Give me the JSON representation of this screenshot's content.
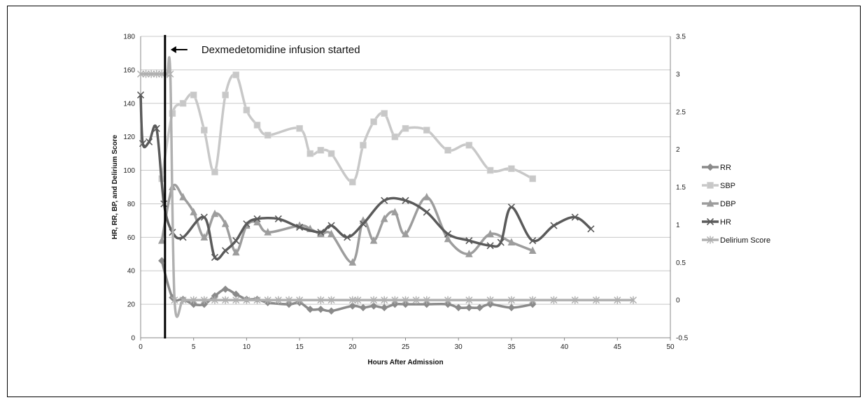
{
  "chart_data": {
    "type": "line",
    "title": "",
    "xlabel": "Hours After Admission",
    "ylabel": "HR, RR, BP, and Delirium Score",
    "xlim": [
      0,
      50
    ],
    "ylim": [
      0,
      180
    ],
    "y2lim": [
      -0.5,
      3.5
    ],
    "x_ticks": [
      0,
      5,
      10,
      15,
      20,
      25,
      30,
      35,
      40,
      45,
      50
    ],
    "y_ticks": [
      0,
      20,
      40,
      60,
      80,
      100,
      120,
      140,
      160,
      180
    ],
    "y2_ticks": [
      -0.5,
      0,
      0.5,
      1,
      1.5,
      2,
      2.5,
      3,
      3.5
    ],
    "grid": "horizontal",
    "legend_position": "right",
    "annotation": {
      "text": "Dexmedetomidine infusion started",
      "x": 2.3
    },
    "series": [
      {
        "name": "RR",
        "axis": "left",
        "color": "#8a8a8a",
        "marker": "diamond",
        "points": [
          [
            2,
            46
          ],
          [
            3,
            24
          ],
          [
            4,
            23
          ],
          [
            5,
            20
          ],
          [
            6,
            20
          ],
          [
            7,
            25
          ],
          [
            8,
            29
          ],
          [
            9,
            26
          ],
          [
            10,
            23
          ],
          [
            11,
            23
          ],
          [
            12,
            21
          ],
          [
            14,
            20
          ],
          [
            15,
            21
          ],
          [
            16,
            17
          ],
          [
            17,
            17
          ],
          [
            18,
            16
          ],
          [
            20,
            19
          ],
          [
            21,
            18
          ],
          [
            22,
            19
          ],
          [
            23,
            18
          ],
          [
            24,
            20
          ],
          [
            25,
            20
          ],
          [
            27,
            20
          ],
          [
            29,
            20
          ],
          [
            30,
            18
          ],
          [
            31,
            18
          ],
          [
            32,
            18
          ],
          [
            33,
            20
          ],
          [
            35,
            18
          ],
          [
            37,
            20
          ]
        ]
      },
      {
        "name": "SBP",
        "axis": "left",
        "color": "#c8c8c8",
        "marker": "square",
        "points": [
          [
            2,
            95
          ],
          [
            3,
            134
          ],
          [
            4,
            140
          ],
          [
            5,
            145
          ],
          [
            6,
            124
          ],
          [
            7,
            99
          ],
          [
            8,
            145
          ],
          [
            9,
            157
          ],
          [
            10,
            136
          ],
          [
            11,
            127
          ],
          [
            12,
            121
          ],
          [
            15,
            125
          ],
          [
            16,
            110
          ],
          [
            17,
            112
          ],
          [
            18,
            110
          ],
          [
            20,
            93
          ],
          [
            21,
            115
          ],
          [
            22,
            129
          ],
          [
            23,
            134
          ],
          [
            24,
            120
          ],
          [
            25,
            125
          ],
          [
            27,
            124
          ],
          [
            29,
            112
          ],
          [
            31,
            115
          ],
          [
            33,
            100
          ],
          [
            35,
            101
          ],
          [
            37,
            95
          ]
        ]
      },
      {
        "name": "DBP",
        "axis": "left",
        "color": "#9d9d9d",
        "marker": "triangle",
        "points": [
          [
            2,
            58
          ],
          [
            3,
            90
          ],
          [
            4,
            84
          ],
          [
            5,
            75
          ],
          [
            6,
            60
          ],
          [
            7,
            74
          ],
          [
            8,
            68
          ],
          [
            9,
            51
          ],
          [
            10,
            67
          ],
          [
            11,
            69
          ],
          [
            12,
            63
          ],
          [
            15,
            67
          ],
          [
            16,
            65
          ],
          [
            17,
            62
          ],
          [
            18,
            62
          ],
          [
            20,
            45
          ],
          [
            21,
            70
          ],
          [
            22,
            58
          ],
          [
            23,
            71
          ],
          [
            24,
            75
          ],
          [
            25,
            62
          ],
          [
            27,
            84
          ],
          [
            29,
            59
          ],
          [
            31,
            50
          ],
          [
            33,
            62
          ],
          [
            35,
            57
          ],
          [
            37,
            52
          ]
        ]
      },
      {
        "name": "HR",
        "axis": "left",
        "color": "#5a5a5a",
        "marker": "x",
        "points": [
          [
            0,
            145
          ],
          [
            0.2,
            116
          ],
          [
            0.8,
            117
          ],
          [
            1.5,
            125
          ],
          [
            2.2,
            80
          ],
          [
            3,
            63
          ],
          [
            4,
            60
          ],
          [
            6,
            72
          ],
          [
            7,
            48
          ],
          [
            8,
            52
          ],
          [
            9,
            58
          ],
          [
            10,
            68
          ],
          [
            11,
            71
          ],
          [
            13,
            71
          ],
          [
            15,
            66
          ],
          [
            17,
            63
          ],
          [
            18,
            67
          ],
          [
            19.5,
            60
          ],
          [
            21,
            68
          ],
          [
            23,
            82
          ],
          [
            25,
            82
          ],
          [
            27,
            75
          ],
          [
            29,
            62
          ],
          [
            31,
            58
          ],
          [
            33,
            55
          ],
          [
            34,
            57
          ],
          [
            35,
            78
          ],
          [
            37,
            58
          ],
          [
            39,
            67
          ],
          [
            41,
            72
          ],
          [
            42.5,
            65
          ]
        ]
      },
      {
        "name": "Delirium Score",
        "axis": "right",
        "color": "#b0b0b0",
        "marker": "star",
        "points": [
          [
            0,
            3
          ],
          [
            0.5,
            3
          ],
          [
            1,
            3
          ],
          [
            1.5,
            3
          ],
          [
            2,
            3
          ],
          [
            2.5,
            3
          ],
          [
            2.8,
            3
          ],
          [
            3.2,
            0
          ],
          [
            4,
            0
          ],
          [
            5,
            0
          ],
          [
            6,
            0
          ],
          [
            7,
            0
          ],
          [
            8,
            0
          ],
          [
            9,
            0
          ],
          [
            10,
            0
          ],
          [
            11,
            0
          ],
          [
            12,
            0
          ],
          [
            13,
            0
          ],
          [
            14,
            0
          ],
          [
            15,
            0
          ],
          [
            17,
            0
          ],
          [
            18,
            0
          ],
          [
            20,
            0
          ],
          [
            20.5,
            0
          ],
          [
            22,
            0
          ],
          [
            23,
            0
          ],
          [
            24,
            0
          ],
          [
            25,
            0
          ],
          [
            26,
            0
          ],
          [
            27,
            0
          ],
          [
            29,
            0
          ],
          [
            31,
            0
          ],
          [
            33,
            0
          ],
          [
            35,
            0
          ],
          [
            37,
            0
          ],
          [
            39,
            0
          ],
          [
            41,
            0
          ],
          [
            43,
            0
          ],
          [
            45,
            0
          ],
          [
            46.5,
            0
          ]
        ]
      }
    ]
  }
}
